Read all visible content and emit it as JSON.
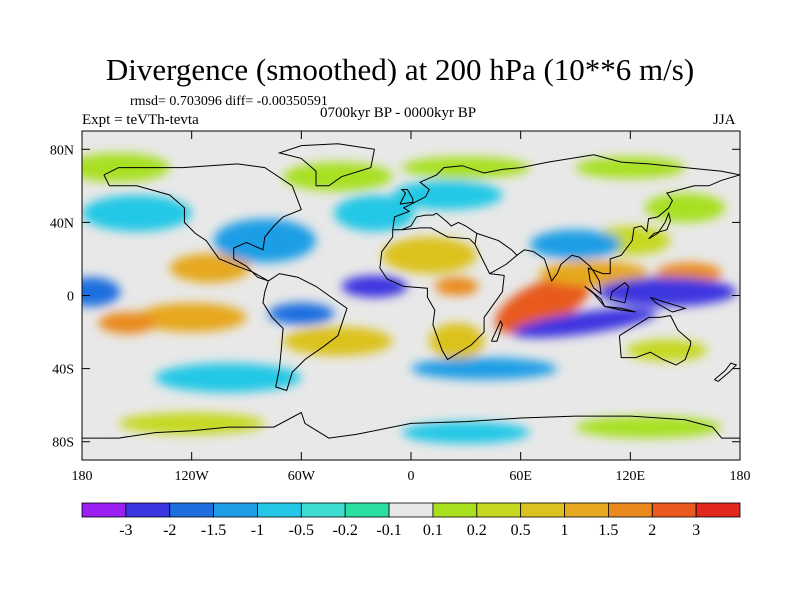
{
  "title": "Divergence (smoothed) at 200 hPa (10**6 m/s)",
  "stats": "rmsd= 0.703096 diff= -0.00350591",
  "experiment": "Expt = teVTh-tevta",
  "period": "0700kyr BP - 0000kyr BP",
  "season": "JJA",
  "map": {
    "x_ticks": [
      {
        "lon": -180,
        "label": "180"
      },
      {
        "lon": -120,
        "label": "120W"
      },
      {
        "lon": -60,
        "label": "60W"
      },
      {
        "lon": 0,
        "label": "0"
      },
      {
        "lon": 60,
        "label": "60E"
      },
      {
        "lon": 120,
        "label": "120E"
      },
      {
        "lon": 180,
        "label": "180"
      }
    ],
    "y_ticks": [
      {
        "lat": 80,
        "label": "80N"
      },
      {
        "lat": 40,
        "label": "40N"
      },
      {
        "lat": 0,
        "label": "0"
      },
      {
        "lat": -40,
        "label": "40S"
      },
      {
        "lat": -80,
        "label": "80S"
      }
    ],
    "lat_range": [
      -90,
      90
    ],
    "lon_range": [
      -180,
      180
    ]
  },
  "colorbar": {
    "colors": [
      "#9b1ff0",
      "#3c36e0",
      "#1e6ee0",
      "#1e9ee6",
      "#22c8e6",
      "#3cdcd0",
      "#2ae0a0",
      "#e8e8e8",
      "#a8e020",
      "#c6d820",
      "#dcc21e",
      "#e6a81e",
      "#ea8a1e",
      "#e85a1e",
      "#e0281e"
    ],
    "labels": [
      "-3",
      "-2",
      "-1.5",
      "-1",
      "-0.5",
      "-0.2",
      "-0.1",
      "0.1",
      "0.2",
      "0.5",
      "1",
      "1.5",
      "2",
      "3"
    ]
  },
  "anomalies": [
    {
      "lon": 72,
      "lat": -5,
      "rx": 28,
      "ry": 12,
      "v": 3.0,
      "rot": -25
    },
    {
      "lon": 100,
      "lat": 12,
      "rx": 30,
      "ry": 7,
      "v": 1.5
    },
    {
      "lon": 152,
      "lat": 12,
      "rx": 18,
      "ry": 6,
      "v": 2.0
    },
    {
      "lon": 120,
      "lat": 30,
      "rx": 22,
      "ry": 8,
      "v": 0.5
    },
    {
      "lon": 10,
      "lat": 22,
      "rx": 26,
      "ry": 10,
      "v": 1.0
    },
    {
      "lon": 25,
      "lat": 5,
      "rx": 12,
      "ry": 5,
      "v": 2.0
    },
    {
      "lon": -40,
      "lat": -25,
      "rx": 30,
      "ry": 8,
      "v": 1.0
    },
    {
      "lon": -120,
      "lat": -12,
      "rx": 30,
      "ry": 8,
      "v": 1.5
    },
    {
      "lon": -155,
      "lat": -15,
      "rx": 16,
      "ry": 6,
      "v": 2.0
    },
    {
      "lon": -110,
      "lat": 15,
      "rx": 22,
      "ry": 8,
      "v": 1.5
    },
    {
      "lon": 25,
      "lat": -25,
      "rx": 15,
      "ry": 10,
      "v": 1.0
    },
    {
      "lon": 140,
      "lat": -30,
      "rx": 22,
      "ry": 6,
      "v": 0.5
    },
    {
      "lon": 95,
      "lat": -15,
      "rx": 40,
      "ry": 6,
      "v": -2.0,
      "rot": -8
    },
    {
      "lon": 140,
      "lat": 2,
      "rx": 38,
      "ry": 8,
      "v": -2.0
    },
    {
      "lon": 90,
      "lat": 28,
      "rx": 25,
      "ry": 8,
      "v": -1.0
    },
    {
      "lon": -20,
      "lat": 5,
      "rx": 18,
      "ry": 6,
      "v": -2.0
    },
    {
      "lon": -175,
      "lat": 2,
      "rx": 16,
      "ry": 8,
      "v": -1.5
    },
    {
      "lon": -80,
      "lat": 30,
      "rx": 28,
      "ry": 12,
      "v": -1.0
    },
    {
      "lon": -60,
      "lat": -10,
      "rx": 18,
      "ry": 6,
      "v": -1.5
    },
    {
      "lon": 40,
      "lat": -40,
      "rx": 40,
      "ry": 6,
      "v": -1.0
    },
    {
      "lon": -150,
      "lat": 45,
      "rx": 30,
      "ry": 10,
      "v": -0.5
    },
    {
      "lon": 20,
      "lat": 55,
      "rx": 30,
      "ry": 8,
      "v": -0.5
    },
    {
      "lon": -20,
      "lat": 45,
      "rx": 22,
      "ry": 10,
      "v": -0.5
    },
    {
      "lon": -100,
      "lat": -45,
      "rx": 40,
      "ry": 8,
      "v": -0.5
    },
    {
      "lon": 150,
      "lat": 48,
      "rx": 22,
      "ry": 8,
      "v": 0.2
    },
    {
      "lon": -160,
      "lat": 70,
      "rx": 28,
      "ry": 8,
      "v": 0.2
    },
    {
      "lon": -40,
      "lat": 65,
      "rx": 30,
      "ry": 8,
      "v": 0.2
    },
    {
      "lon": 30,
      "lat": 70,
      "rx": 35,
      "ry": 6,
      "v": 0.2
    },
    {
      "lon": 120,
      "lat": 70,
      "rx": 30,
      "ry": 6,
      "v": 0.2
    },
    {
      "lon": -120,
      "lat": -70,
      "rx": 40,
      "ry": 6,
      "v": 0.5
    },
    {
      "lon": 130,
      "lat": -72,
      "rx": 40,
      "ry": 6,
      "v": 0.2
    },
    {
      "lon": 30,
      "lat": -75,
      "rx": 35,
      "ry": 6,
      "v": -0.5
    }
  ]
}
